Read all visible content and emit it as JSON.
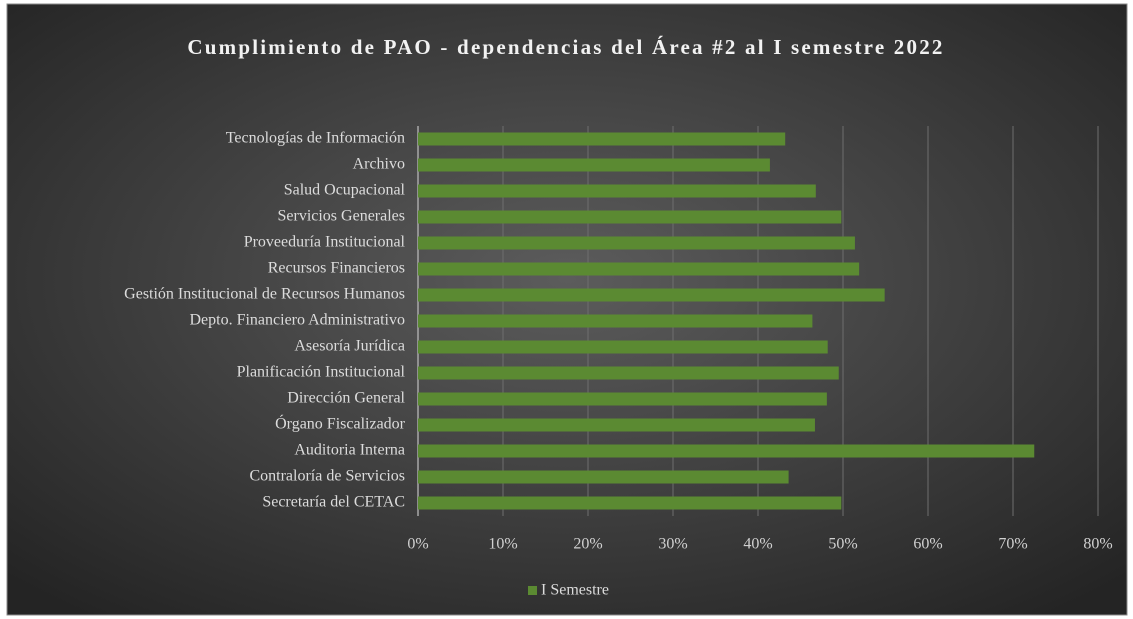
{
  "chart_data": {
    "type": "bar",
    "orientation": "horizontal",
    "title": "Cumplimiento de PAO - dependencias del Área #2 al I semestre 2022",
    "categories": [
      "Tecnologías de Información",
      "Archivo",
      "Salud Ocupacional",
      "Servicios Generales",
      "Proveeduría Institucional",
      "Recursos Financieros",
      "Gestión Institucional de Recursos Humanos",
      "Depto. Financiero Administrativo",
      "Asesoría Jurídica",
      "Planificación Institucional",
      "Dirección General",
      "Órgano Fiscalizador",
      "Auditoria Interna",
      "Contraloría de Servicios",
      "Secretaría del CETAC"
    ],
    "series": [
      {
        "name": "I Semestre",
        "color": "#5b8a32",
        "values": [
          43.2,
          41.4,
          46.8,
          49.8,
          51.4,
          51.9,
          54.9,
          46.4,
          48.2,
          49.5,
          48.1,
          46.7,
          72.5,
          43.6,
          49.8
        ]
      }
    ],
    "xlim": [
      0,
      80
    ],
    "xticks": [
      {
        "value": 0,
        "label": "0%"
      },
      {
        "value": 10,
        "label": "10%"
      },
      {
        "value": 20,
        "label": "20%"
      },
      {
        "value": 30,
        "label": "30%"
      },
      {
        "value": 40,
        "label": "40%"
      },
      {
        "value": 50,
        "label": "50%"
      },
      {
        "value": 60,
        "label": "60%"
      },
      {
        "value": 70,
        "label": "70%"
      },
      {
        "value": 80,
        "label": "80%"
      }
    ],
    "grid": true,
    "legend": "bottom"
  }
}
